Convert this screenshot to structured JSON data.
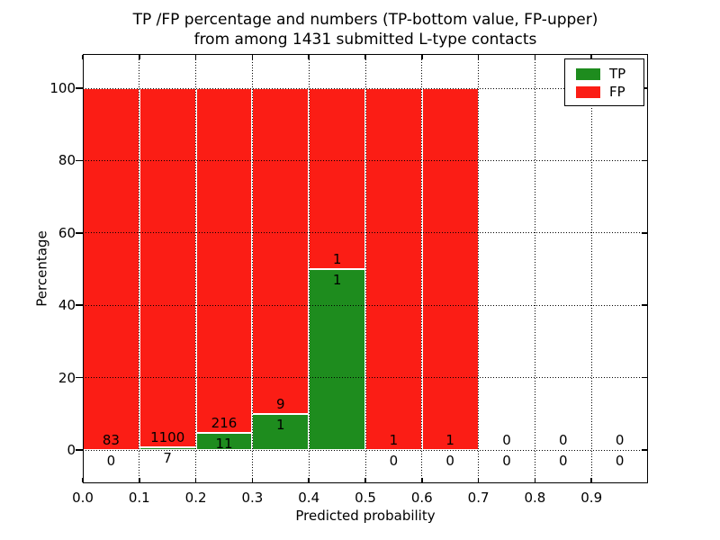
{
  "figure": {
    "title_line1": "TP /FP percentage and numbers (TP-bottom value, FP-upper)",
    "title_line2": "from among 1431 submitted L-type contacts"
  },
  "chart_data": {
    "type": "bar",
    "stacked": true,
    "title": "TP /FP percentage and numbers (TP-bottom value, FP-upper) from among 1431 submitted L-type contacts",
    "xlabel": "Predicted probability",
    "ylabel": "Percentage",
    "total_contacts": 1431,
    "categories": [
      "0.0-0.1",
      "0.1-0.2",
      "0.2-0.3",
      "0.3-0.4",
      "0.4-0.5",
      "0.5-0.6",
      "0.6-0.7",
      "0.7-0.8",
      "0.8-0.9",
      "0.9-1.0"
    ],
    "series": [
      {
        "name": "TP",
        "color": "#1e8c1e",
        "counts": [
          0,
          7,
          11,
          1,
          1,
          0,
          0,
          0,
          0,
          0
        ]
      },
      {
        "name": "FP",
        "color": "#fb1d15",
        "counts": [
          83,
          1100,
          216,
          9,
          1,
          1,
          1,
          0,
          0,
          0
        ]
      }
    ],
    "tp_percent": [
      0,
      0.63,
      4.85,
      10.0,
      50.0,
      0,
      0,
      0,
      0,
      0
    ],
    "fp_percent": [
      100,
      99.37,
      95.15,
      90.0,
      50.0,
      100,
      100,
      0,
      0,
      0
    ],
    "xticks": [
      0.0,
      0.1,
      0.2,
      0.3,
      0.4,
      0.5,
      0.6,
      0.7,
      0.8,
      0.9
    ],
    "xtick_labels": [
      "0.0",
      "0.1",
      "0.2",
      "0.3",
      "0.4",
      "0.5",
      "0.6",
      "0.7",
      "0.8",
      "0.9"
    ],
    "yticks": [
      0,
      20,
      40,
      60,
      80,
      100
    ],
    "ytick_labels": [
      "0",
      "20",
      "40",
      "60",
      "80",
      "100"
    ],
    "xlim": [
      0.0,
      1.0
    ],
    "ylim": [
      -10,
      110
    ],
    "grid": true,
    "grid_style": "dotted",
    "bar_edge_color": "#ffffff",
    "legend": {
      "position": "upper right",
      "items": [
        {
          "label": "TP",
          "color": "#1e8c1e"
        },
        {
          "label": "FP",
          "color": "#fb1d15"
        }
      ]
    }
  }
}
